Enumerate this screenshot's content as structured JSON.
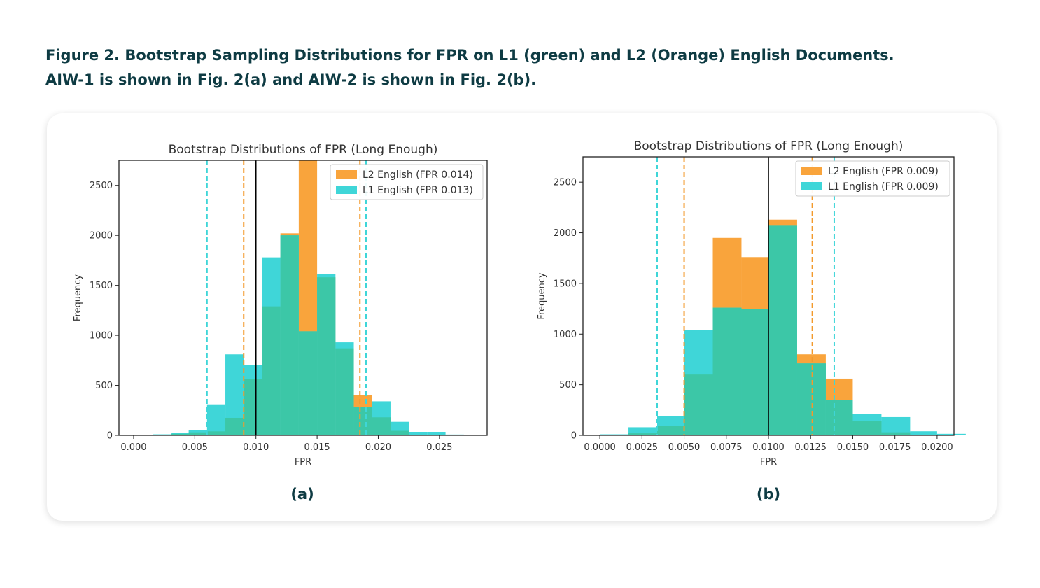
{
  "caption": {
    "line1": "Figure 2. Bootstrap Sampling Distributions for FPR on L1 (green) and L2 (Orange) English Documents.",
    "line2": "AIW-1 is shown in Fig. 2(a) and AIW-2 is shown in Fig. 2(b)."
  },
  "colors": {
    "l2": "#f9a43c",
    "l1": "#3fd6d8",
    "overlap": "#3cc7a7",
    "mean": "#000000"
  },
  "chart_data": [
    {
      "type": "bar",
      "panel_label": "(a)",
      "title": "Bootstrap Distributions of FPR (Long Enough)",
      "xlabel": "FPR",
      "ylabel": "Frequency",
      "xlim": [
        -0.0012,
        0.0289
      ],
      "ylim": [
        0,
        2750
      ],
      "xticks": [
        0.0,
        0.005,
        0.01,
        0.015,
        0.02,
        0.025
      ],
      "xtick_labels": [
        "0.000",
        "0.005",
        "0.010",
        "0.015",
        "0.020",
        "0.025"
      ],
      "yticks": [
        0,
        500,
        1000,
        1500,
        2000,
        2500
      ],
      "ytick_labels": [
        "0",
        "500",
        "1000",
        "1500",
        "2000",
        "2500"
      ],
      "legend_position": "top-right",
      "series": [
        {
          "name": "L2 English (FPR 0.014)",
          "color": "#f9a43c",
          "bins": [
            [
              0.0016,
              0.0031,
              5
            ],
            [
              0.0031,
              0.0045,
              15
            ],
            [
              0.0045,
              0.006,
              30
            ],
            [
              0.006,
              0.0075,
              40
            ],
            [
              0.0075,
              0.009,
              175
            ],
            [
              0.009,
              0.0105,
              560
            ],
            [
              0.0105,
              0.012,
              1290
            ],
            [
              0.012,
              0.0135,
              2020
            ],
            [
              0.0135,
              0.015,
              2750
            ],
            [
              0.015,
              0.0165,
              1580
            ],
            [
              0.0165,
              0.018,
              870
            ],
            [
              0.018,
              0.0195,
              400
            ],
            [
              0.0195,
              0.021,
              180
            ],
            [
              0.021,
              0.0225,
              45
            ]
          ]
        },
        {
          "name": "L1 English (FPR 0.013)",
          "color": "#3fd6d8",
          "bins": [
            [
              0.0016,
              0.0031,
              10
            ],
            [
              0.0031,
              0.0045,
              25
            ],
            [
              0.0045,
              0.006,
              50
            ],
            [
              0.006,
              0.0075,
              310
            ],
            [
              0.0075,
              0.009,
              810
            ],
            [
              0.009,
              0.0105,
              700
            ],
            [
              0.0105,
              0.012,
              1780
            ],
            [
              0.012,
              0.0135,
              2000
            ],
            [
              0.0135,
              0.015,
              1040
            ],
            [
              0.015,
              0.0165,
              1610
            ],
            [
              0.0165,
              0.018,
              930
            ],
            [
              0.018,
              0.0195,
              280
            ],
            [
              0.0195,
              0.021,
              340
            ],
            [
              0.021,
              0.0225,
              135
            ],
            [
              0.0225,
              0.024,
              35
            ],
            [
              0.024,
              0.0255,
              35
            ],
            [
              0.0255,
              0.027,
              8
            ]
          ]
        }
      ],
      "vlines": [
        {
          "x": 0.006,
          "color": "#3fd6d8",
          "style": "dashed"
        },
        {
          "x": 0.009,
          "color": "#f39a2c",
          "style": "dashed"
        },
        {
          "x": 0.01,
          "color": "#000000",
          "style": "solid"
        },
        {
          "x": 0.0185,
          "color": "#f39a2c",
          "style": "dashed"
        },
        {
          "x": 0.019,
          "color": "#3fd6d8",
          "style": "dashed"
        }
      ]
    },
    {
      "type": "bar",
      "panel_label": "(b)",
      "title": "Bootstrap Distributions of FPR (Long Enough)",
      "xlabel": "FPR",
      "ylabel": "Frequency",
      "xlim": [
        -0.001,
        0.021
      ],
      "ylim": [
        0,
        2750
      ],
      "xticks": [
        0.0,
        0.0025,
        0.005,
        0.0075,
        0.01,
        0.0125,
        0.015,
        0.0175,
        0.02
      ],
      "xtick_labels": [
        "0.0000",
        "0.0025",
        "0.0050",
        "0.0075",
        "0.0100",
        "0.0125",
        "0.0150",
        "0.0175",
        "0.0200"
      ],
      "yticks": [
        0,
        500,
        1000,
        1500,
        2000,
        2500
      ],
      "ytick_labels": [
        "0",
        "500",
        "1000",
        "1500",
        "2000",
        "2500"
      ],
      "legend_position": "top-right",
      "series": [
        {
          "name": "L2 English (FPR 0.009)",
          "color": "#f9a43c",
          "bins": [
            [
              0.0,
              0.0017,
              5
            ],
            [
              0.0017,
              0.0034,
              20
            ],
            [
              0.0034,
              0.005,
              90
            ],
            [
              0.005,
              0.0067,
              600
            ],
            [
              0.0067,
              0.0084,
              1950
            ],
            [
              0.0084,
              0.01,
              1760
            ],
            [
              0.01,
              0.0117,
              2130
            ],
            [
              0.0117,
              0.0134,
              800
            ],
            [
              0.0134,
              0.015,
              560
            ],
            [
              0.015,
              0.0167,
              140
            ],
            [
              0.0167,
              0.0184,
              30
            ],
            [
              0.0184,
              0.02,
              5
            ]
          ]
        },
        {
          "name": "L1 English (FPR 0.009)",
          "color": "#3fd6d8",
          "bins": [
            [
              0.0,
              0.0017,
              10
            ],
            [
              0.0017,
              0.0034,
              80
            ],
            [
              0.0034,
              0.005,
              190
            ],
            [
              0.005,
              0.0067,
              1040
            ],
            [
              0.0067,
              0.0084,
              1260
            ],
            [
              0.0084,
              0.01,
              1250
            ],
            [
              0.01,
              0.0117,
              2070
            ],
            [
              0.0117,
              0.0134,
              710
            ],
            [
              0.0134,
              0.015,
              350
            ],
            [
              0.015,
              0.0167,
              210
            ],
            [
              0.0167,
              0.0184,
              180
            ],
            [
              0.0184,
              0.02,
              40
            ],
            [
              0.02,
              0.0217,
              15
            ]
          ]
        }
      ],
      "vlines": [
        {
          "x": 0.0034,
          "color": "#3fd6d8",
          "style": "dashed"
        },
        {
          "x": 0.005,
          "color": "#f39a2c",
          "style": "dashed"
        },
        {
          "x": 0.01,
          "color": "#000000",
          "style": "solid"
        },
        {
          "x": 0.0126,
          "color": "#f39a2c",
          "style": "dashed"
        },
        {
          "x": 0.0139,
          "color": "#3fd6d8",
          "style": "dashed"
        }
      ]
    }
  ]
}
